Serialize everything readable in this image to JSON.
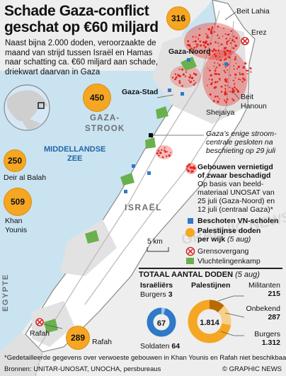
{
  "title": {
    "line1": "Schade Gaza-conflict",
    "line2": "geschat op €60 miljard"
  },
  "intro": "Naast bijna 2.000 doden, veroorzaakte de maand van strijd tussen Israël en Hamas naar schatting ca. €60 miljard aan schade, driekwart daarvan in Gaza",
  "colors": {
    "sea": "#c9e3f1",
    "land": "#eeeeee",
    "gaza": "#ffffff",
    "urban": "#e2e2e2",
    "damage": "#e5201b",
    "death_circle": "#f5a623",
    "un_school": "#2f79c7",
    "refugee_camp": "#6ab04c",
    "crossing": "#cf2a2a",
    "israeli_donut": "#2f79c7"
  },
  "places": {
    "beit_lahia": "Beit Lahia",
    "erez": "Erez",
    "gaza_noord": "Gaza-Noord",
    "gaza_stad": "Gaza-Stad",
    "beit_hanoun": "Beit Hanoun",
    "shejaiya": "Shejaiya",
    "gaza_strook_1": "GAZA-",
    "gaza_strook_2": "STROOK",
    "middellandse_zee_1": "MIDDELLANDSE",
    "middellandse_zee_2": "ZEE",
    "deir_al_balah": "Deir al Balah",
    "khan_younis_1": "Khan",
    "khan_younis_2": "Younis",
    "israel": "ISRAËL",
    "egypte": "EGYPTE",
    "rafah_1": "Rafah",
    "rafah_2": "Rafah"
  },
  "deaths_per_district": [
    {
      "name": "Gaza-Noord",
      "value": "316"
    },
    {
      "name": "Gaza-Stad",
      "value": "450"
    },
    {
      "name": "Deir al Balah",
      "value": "250"
    },
    {
      "name": "Khan Younis",
      "value": "509"
    },
    {
      "name": "Rafah",
      "value": "289"
    }
  ],
  "power_plant_note": {
    "line1": "Gaza’s enige stroom-",
    "line2": "centrale gesloten na",
    "line3": "beschieting op 29 juli"
  },
  "scale": "5 km",
  "legend": {
    "damaged_title_1": "Gebouwen vernietigd",
    "damaged_title_2": "of zwaar beschadigd",
    "damaged_desc": [
      "Op basis van beeld-",
      "materiaal UNOSAT van",
      "25 juli (Gaza-Noord) en",
      "12 juli (centraal Gaza)*"
    ],
    "un_schools": "Beschoten VN-scholen",
    "deaths_1": "Palestijnse doden",
    "deaths_2": "per wijk",
    "deaths_date": "(5 aug)",
    "crossing": "Grensovergang",
    "camp": "Vluchtelingenkamp"
  },
  "totals": {
    "title": "TOTAAL AANTAL DODEN",
    "date": "(5 aug)",
    "israelis": {
      "label": "Israëliërs",
      "total": "67",
      "civilians_label": "Burgers",
      "civilians": "3",
      "soldiers_label": "Soldaten",
      "soldiers": "64",
      "civilians_value": 3,
      "soldiers_value": 64
    },
    "palestinians": {
      "label": "Palestijnen",
      "total": "1.814",
      "militants_label": "Militanten",
      "militants": "215",
      "militants_value": 215,
      "unknown_label": "Onbekend",
      "unknown": "287",
      "unknown_value": 287,
      "civilians_label": "Burgers",
      "civilians": "1.312",
      "civilians_value": 1312
    }
  },
  "footnote": "*Gedetailleerde gegevens over verwoeste gebouwen in Khan Younis en Rafah niet beschikbaar",
  "sources": "Bronnen: UNITAR-UNOSAT, UNOCHA, persbureaus",
  "copyright": "© GRAPHIC NEWS",
  "watermark": "GRAPHIC NEWS"
}
